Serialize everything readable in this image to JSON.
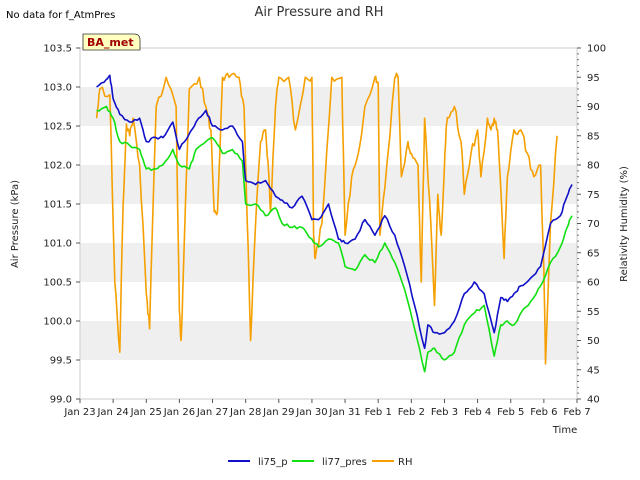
{
  "chart_data": {
    "type": "line",
    "title": "Air Pressure and RH",
    "nodata_note": "No data for f_AtmPres",
    "station_badge": "BA_met",
    "xlabel": "Time",
    "ylabel": "Air Pressure (kPa)",
    "ylabel_right": "Relativity Humidity (%)",
    "x_ticks": [
      "Jan 23",
      "Jan 24",
      "Jan 25",
      "Jan 26",
      "Jan 27",
      "Jan 28",
      "Jan 29",
      "Jan 30",
      "Jan 31",
      "Feb 1",
      "Feb 2",
      "Feb 3",
      "Feb 4",
      "Feb 5",
      "Feb 6",
      "Feb 7"
    ],
    "x_tick_days": [
      0,
      1,
      2,
      3,
      4,
      5,
      6,
      7,
      8,
      9,
      10,
      11,
      12,
      13,
      14,
      15
    ],
    "xlim": [
      0,
      15
    ],
    "ylim": [
      99.0,
      103.5
    ],
    "y_ticks": [
      "99.0",
      "99.5",
      "100.0",
      "100.5",
      "101.0",
      "101.5",
      "102.0",
      "102.5",
      "103.0",
      "103.5"
    ],
    "y_tick_values": [
      99.0,
      99.5,
      100.0,
      100.5,
      101.0,
      101.5,
      102.0,
      102.5,
      103.0,
      103.5
    ],
    "ylim_right": [
      40,
      100
    ],
    "y_ticks_right": [
      "40",
      "45",
      "50",
      "55",
      "60",
      "65",
      "70",
      "75",
      "80",
      "85",
      "90",
      "95",
      "100"
    ],
    "y_tick_values_right": [
      40,
      45,
      50,
      55,
      60,
      65,
      70,
      75,
      80,
      85,
      90,
      95,
      100
    ],
    "band_color": "#efefef",
    "series": [
      {
        "name": "li75_p",
        "axis": "left",
        "color": "#1010c8",
        "x": [
          0.5,
          0.8,
          0.9,
          1.0,
          1.2,
          1.5,
          1.8,
          2.0,
          2.3,
          2.5,
          2.8,
          3.0,
          3.3,
          3.5,
          3.8,
          4.0,
          4.3,
          4.6,
          4.9,
          5.0,
          5.3,
          5.6,
          5.9,
          6.1,
          6.4,
          6.7,
          7.0,
          7.2,
          7.5,
          7.8,
          8.0,
          8.3,
          8.6,
          8.9,
          9.2,
          9.5,
          9.8,
          10.1,
          10.4,
          10.5,
          10.7,
          11.0,
          11.3,
          11.6,
          11.9,
          12.2,
          12.5,
          12.7,
          12.9,
          13.1,
          13.3,
          13.6,
          13.9,
          14.2,
          14.5,
          14.7,
          14.85
        ],
        "y": [
          103.0,
          103.1,
          103.15,
          102.85,
          102.65,
          102.55,
          102.6,
          102.3,
          102.35,
          102.35,
          102.55,
          102.2,
          102.4,
          102.55,
          102.7,
          102.5,
          102.45,
          102.5,
          102.3,
          101.8,
          101.75,
          101.8,
          101.6,
          101.55,
          101.45,
          101.6,
          101.3,
          101.3,
          101.5,
          101.05,
          101.0,
          101.05,
          101.3,
          101.1,
          101.35,
          101.1,
          100.7,
          100.2,
          99.65,
          99.95,
          99.85,
          99.85,
          100.0,
          100.35,
          100.5,
          100.35,
          99.85,
          100.3,
          100.25,
          100.35,
          100.45,
          100.55,
          100.7,
          101.25,
          101.35,
          101.6,
          101.75
        ]
      },
      {
        "name": "li77_pres",
        "axis": "left",
        "color": "#10e010",
        "x": [
          0.5,
          0.8,
          1.0,
          1.2,
          1.5,
          1.8,
          2.0,
          2.3,
          2.5,
          2.8,
          3.0,
          3.3,
          3.5,
          3.8,
          4.0,
          4.3,
          4.6,
          4.9,
          5.0,
          5.3,
          5.6,
          5.9,
          6.1,
          6.4,
          6.7,
          7.0,
          7.2,
          7.5,
          7.8,
          8.0,
          8.3,
          8.6,
          8.9,
          9.2,
          9.5,
          9.8,
          10.1,
          10.4,
          10.5,
          10.7,
          11.0,
          11.3,
          11.6,
          11.9,
          12.2,
          12.5,
          12.7,
          12.9,
          13.1,
          13.3,
          13.6,
          13.9,
          14.2,
          14.5,
          14.7,
          14.85
        ],
        "y": [
          102.7,
          102.75,
          102.6,
          102.3,
          102.25,
          102.2,
          101.95,
          101.95,
          102.0,
          102.2,
          102.0,
          101.95,
          102.2,
          102.3,
          102.35,
          102.15,
          102.2,
          102.05,
          101.5,
          101.5,
          101.35,
          101.45,
          101.25,
          101.2,
          101.2,
          101.05,
          100.95,
          101.05,
          101.0,
          100.7,
          100.65,
          100.85,
          100.75,
          101.0,
          100.75,
          100.4,
          99.9,
          99.35,
          99.6,
          99.65,
          99.5,
          99.6,
          99.95,
          100.1,
          100.2,
          99.55,
          99.95,
          100.0,
          99.95,
          100.1,
          100.25,
          100.45,
          100.75,
          100.95,
          101.2,
          101.35
        ]
      },
      {
        "name": "RH",
        "axis": "right",
        "color": "#f5a000",
        "x": [
          0.5,
          0.6,
          0.9,
          1.05,
          1.2,
          1.3,
          1.4,
          1.5,
          1.6,
          1.8,
          2.0,
          2.1,
          2.2,
          2.3,
          2.6,
          2.9,
          3.0,
          3.05,
          3.1,
          3.3,
          3.6,
          3.8,
          3.95,
          4.05,
          4.15,
          4.3,
          4.5,
          4.8,
          4.95,
          5.05,
          5.15,
          5.3,
          5.45,
          5.6,
          5.7,
          5.75,
          5.9,
          6.0,
          6.3,
          6.5,
          6.8,
          7.0,
          7.05,
          7.1,
          7.3,
          7.6,
          7.9,
          8.0,
          8.2,
          8.4,
          8.6,
          8.9,
          9.0,
          9.05,
          9.2,
          9.5,
          9.6,
          9.7,
          9.9,
          10.0,
          10.2,
          10.3,
          10.4,
          10.55,
          10.7,
          10.8,
          10.9,
          11.0,
          11.05,
          11.1,
          11.3,
          11.5,
          11.6,
          11.8,
          12.0,
          12.1,
          12.3,
          12.4,
          12.5,
          12.6,
          12.7,
          12.8,
          12.9,
          13.1,
          13.3,
          13.5,
          13.7,
          13.9,
          14.0,
          14.05,
          14.2,
          14.4
        ],
        "y": [
          88,
          93,
          92,
          60,
          48,
          73,
          87,
          85,
          88,
          80,
          58,
          52,
          72,
          90,
          95,
          90,
          55,
          50,
          58,
          93,
          95,
          90,
          86,
          72,
          72,
          95,
          95,
          95,
          90,
          70,
          50,
          70,
          84,
          86,
          78,
          72,
          90,
          95,
          95,
          86,
          95,
          95,
          68,
          64,
          70,
          95,
          95,
          68,
          78,
          82,
          90,
          95,
          94,
          68,
          76,
          95,
          95,
          78,
          84,
          82,
          80,
          60,
          88,
          74,
          56,
          75,
          68,
          80,
          86,
          88,
          90,
          84,
          75,
          82,
          86,
          78,
          88,
          86,
          88,
          86,
          76,
          64,
          78,
          86,
          86,
          82,
          78,
          80,
          62,
          46,
          70,
          85
        ]
      }
    ],
    "legend": {
      "position": "bottom-center",
      "entries": [
        "li75_p",
        "li77_pres",
        "RH"
      ]
    }
  }
}
